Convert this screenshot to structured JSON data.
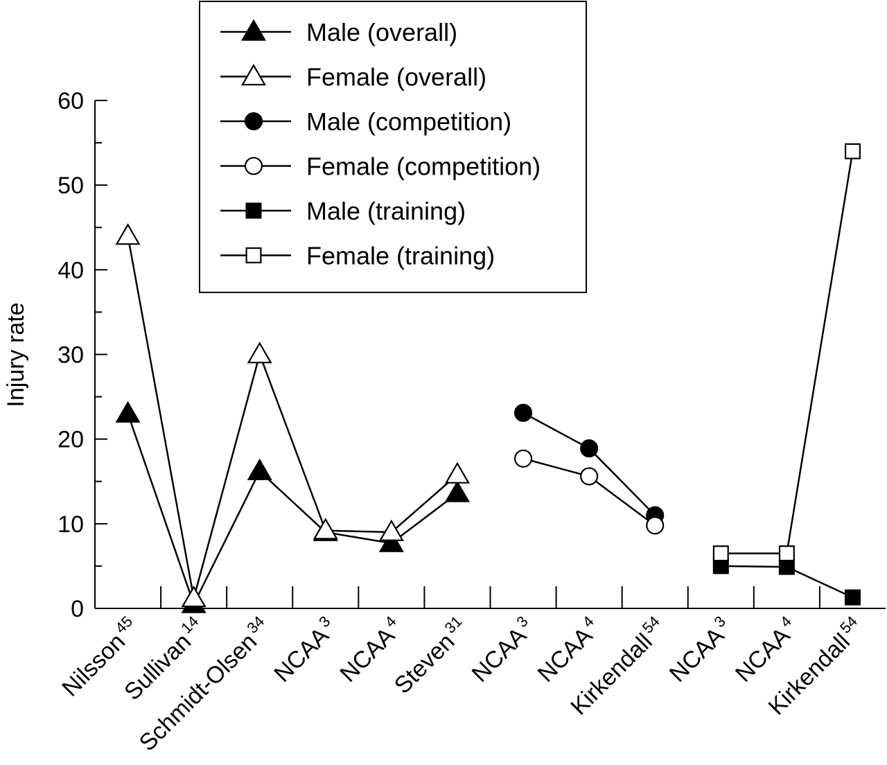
{
  "chart_data": {
    "type": "line",
    "title": "",
    "xlabel": "",
    "ylabel": "Injury rate",
    "ylim": [
      0,
      60
    ],
    "yticks": [
      0,
      10,
      20,
      30,
      40,
      50,
      60
    ],
    "grid": false,
    "legend_position": "top-center",
    "categories": [
      {
        "name": "Nilsson",
        "sup": "45"
      },
      {
        "name": "Sullivan",
        "sup": "14"
      },
      {
        "name": "Schmidt-Olsen",
        "sup": "34"
      },
      {
        "name": "NCAA",
        "sup": "3"
      },
      {
        "name": "NCAA",
        "sup": "4"
      },
      {
        "name": "Steven",
        "sup": "31"
      },
      {
        "name": "NCAA",
        "sup": "3"
      },
      {
        "name": "NCAA",
        "sup": "4"
      },
      {
        "name": "Kirkendall",
        "sup": "54"
      },
      {
        "name": "NCAA",
        "sup": "3"
      },
      {
        "name": "NCAA",
        "sup": "4"
      },
      {
        "name": "Kirkendall",
        "sup": "54"
      }
    ],
    "series": [
      {
        "name": "Male (overall)",
        "marker": "triangle",
        "filled": true,
        "values": [
          23,
          0.5,
          16.2,
          9,
          7.7,
          13.6,
          null,
          null,
          null,
          null,
          null,
          null
        ]
      },
      {
        "name": "Female (overall)",
        "marker": "triangle",
        "filled": false,
        "values": [
          44,
          1.2,
          30,
          9.2,
          9,
          15.8,
          null,
          null,
          null,
          null,
          null,
          null
        ]
      },
      {
        "name": "Male (competition)",
        "marker": "circle",
        "filled": true,
        "values": [
          null,
          null,
          null,
          null,
          null,
          null,
          23.1,
          18.9,
          11,
          null,
          null,
          null
        ]
      },
      {
        "name": "Female (competition)",
        "marker": "circle",
        "filled": false,
        "values": [
          null,
          null,
          null,
          null,
          null,
          null,
          17.7,
          15.6,
          9.8,
          null,
          null,
          null
        ]
      },
      {
        "name": "Male (training)",
        "marker": "square",
        "filled": true,
        "values": [
          null,
          null,
          null,
          null,
          null,
          null,
          null,
          null,
          null,
          5,
          4.9,
          1.3
        ]
      },
      {
        "name": "Female (training)",
        "marker": "square",
        "filled": false,
        "values": [
          null,
          null,
          null,
          null,
          null,
          null,
          null,
          null,
          null,
          6.5,
          6.5,
          54
        ]
      }
    ]
  }
}
